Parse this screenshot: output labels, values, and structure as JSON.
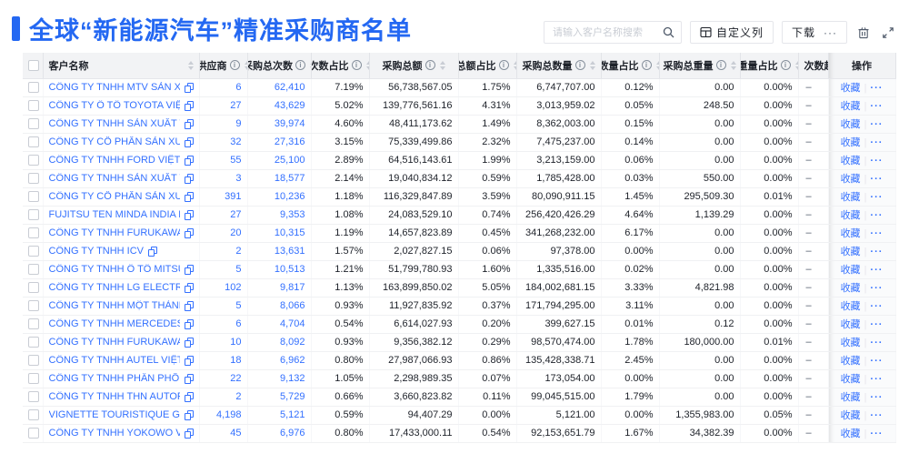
{
  "header": {
    "title": "全球“新能源汽车”精准采购商名单",
    "search_placeholder": "请输入客户名称搜索",
    "customize_columns_label": "自定义列",
    "download_label": "下载",
    "download_more_label": "···"
  },
  "table": {
    "columns": [
      {
        "key": "checkbox",
        "label": "",
        "type": "checkbox"
      },
      {
        "key": "name",
        "label": "客户名称",
        "info": false,
        "sort": true
      },
      {
        "key": "supplier",
        "label": "供应商",
        "info": true,
        "sort": true,
        "num": true,
        "link": true
      },
      {
        "key": "purchase_count",
        "label": "采购总次数",
        "info": true,
        "sort": true,
        "num": true,
        "link": true
      },
      {
        "key": "count_pct",
        "label": "次数占比",
        "info": true,
        "sort": true,
        "num": true
      },
      {
        "key": "amount",
        "label": "采购总额",
        "info": true,
        "sort": true,
        "num": true
      },
      {
        "key": "amount_pct",
        "label": "总额占比",
        "info": true,
        "sort": true,
        "num": true
      },
      {
        "key": "quantity",
        "label": "采购总数量",
        "info": true,
        "sort": true,
        "num": true
      },
      {
        "key": "quantity_pct",
        "label": "数量占比",
        "info": true,
        "sort": true,
        "num": true
      },
      {
        "key": "weight",
        "label": "采购总重量",
        "info": true,
        "sort": true,
        "num": true
      },
      {
        "key": "weight_pct",
        "label": "重量占比",
        "info": true,
        "sort": true,
        "num": true
      },
      {
        "key": "trend",
        "label": "次数趋势",
        "info": false,
        "sort": false
      },
      {
        "key": "action",
        "label": "操作",
        "type": "action"
      }
    ],
    "action_labels": {
      "favorite": "收藏",
      "separator": "|",
      "more": "···"
    },
    "rows": [
      {
        "name": "CÔNG TY TNHH MTV SẢN XUẤ...",
        "supplier": "6",
        "purchase_count": "62,410",
        "count_pct": "7.19%",
        "amount": "56,738,567.05",
        "amount_pct": "1.75%",
        "quantity": "6,747,707.00",
        "quantity_pct": "0.12%",
        "weight": "0.00",
        "weight_pct": "0.00%",
        "trend": "–"
      },
      {
        "name": "CÔNG TY Ô TÔ TOYOTA VIỆT ...",
        "supplier": "27",
        "purchase_count": "43,629",
        "count_pct": "5.02%",
        "amount": "139,776,561.16",
        "amount_pct": "4.31%",
        "quantity": "3,013,959.02",
        "quantity_pct": "0.05%",
        "weight": "248.50",
        "weight_pct": "0.00%",
        "trend": "–"
      },
      {
        "name": "CÔNG TY TNHH SẢN XUẤT VÀ ...",
        "supplier": "9",
        "purchase_count": "39,974",
        "count_pct": "4.60%",
        "amount": "48,411,173.62",
        "amount_pct": "1.49%",
        "quantity": "8,362,003.00",
        "quantity_pct": "0.15%",
        "weight": "0.00",
        "weight_pct": "0.00%",
        "trend": "–"
      },
      {
        "name": "CÔNG TY CỔ PHẦN SẢN XUẤT...",
        "supplier": "32",
        "purchase_count": "27,316",
        "count_pct": "3.15%",
        "amount": "75,339,499.86",
        "amount_pct": "2.32%",
        "quantity": "7,475,237.00",
        "quantity_pct": "0.14%",
        "weight": "0.00",
        "weight_pct": "0.00%",
        "trend": "–"
      },
      {
        "name": "CÔNG TY TNHH FORD VIỆT NAM",
        "supplier": "55",
        "purchase_count": "25,100",
        "count_pct": "2.89%",
        "amount": "64,516,143.61",
        "amount_pct": "1.99%",
        "quantity": "3,213,159.00",
        "quantity_pct": "0.06%",
        "weight": "0.00",
        "weight_pct": "0.00%",
        "trend": "–"
      },
      {
        "name": "CÔNG TY TNHH SẢN XUẤT VÀ ...",
        "supplier": "3",
        "purchase_count": "18,577",
        "count_pct": "2.14%",
        "amount": "19,040,834.12",
        "amount_pct": "0.59%",
        "quantity": "1,785,428.00",
        "quantity_pct": "0.03%",
        "weight": "550.00",
        "weight_pct": "0.00%",
        "trend": "–"
      },
      {
        "name": "CÔNG TY CỔ PHẦN SẢN XUẤT...",
        "supplier": "391",
        "purchase_count": "10,236",
        "count_pct": "1.18%",
        "amount": "116,329,847.89",
        "amount_pct": "3.59%",
        "quantity": "80,090,911.15",
        "quantity_pct": "1.45%",
        "weight": "295,509.30",
        "weight_pct": "0.01%",
        "trend": "–"
      },
      {
        "name": "FUJITSU TEN MINDA INDIA PVT...",
        "supplier": "27",
        "purchase_count": "9,353",
        "count_pct": "1.08%",
        "amount": "24,083,529.10",
        "amount_pct": "0.74%",
        "quantity": "256,420,426.29",
        "quantity_pct": "4.64%",
        "weight": "1,139.29",
        "weight_pct": "0.00%",
        "trend": "–"
      },
      {
        "name": "CÔNG TY TNHH FURUKAWA A...",
        "supplier": "20",
        "purchase_count": "10,315",
        "count_pct": "1.19%",
        "amount": "14,657,823.89",
        "amount_pct": "0.45%",
        "quantity": "341,268,232.00",
        "quantity_pct": "6.17%",
        "weight": "0.00",
        "weight_pct": "0.00%",
        "trend": "–"
      },
      {
        "name": "CÔNG TY TNHH ICV",
        "supplier": "2",
        "purchase_count": "13,631",
        "count_pct": "1.57%",
        "amount": "2,027,827.15",
        "amount_pct": "0.06%",
        "quantity": "97,378.00",
        "quantity_pct": "0.00%",
        "weight": "0.00",
        "weight_pct": "0.00%",
        "trend": "–"
      },
      {
        "name": "CÔNG TY TNHH Ô TÔ MITSUBI...",
        "supplier": "5",
        "purchase_count": "10,513",
        "count_pct": "1.21%",
        "amount": "51,799,780.93",
        "amount_pct": "1.60%",
        "quantity": "1,335,516.00",
        "quantity_pct": "0.02%",
        "weight": "0.00",
        "weight_pct": "0.00%",
        "trend": "–"
      },
      {
        "name": "CÔNG TY TNHH LG ELECTRON...",
        "supplier": "102",
        "purchase_count": "9,817",
        "count_pct": "1.13%",
        "amount": "163,899,850.02",
        "amount_pct": "5.05%",
        "quantity": "184,002,681.15",
        "quantity_pct": "3.33%",
        "weight": "4,821.98",
        "weight_pct": "0.00%",
        "trend": "–"
      },
      {
        "name": "CÔNG TY TNHH MỘT THÀNH V...",
        "supplier": "5",
        "purchase_count": "8,066",
        "count_pct": "0.93%",
        "amount": "11,927,835.92",
        "amount_pct": "0.37%",
        "quantity": "171,794,295.00",
        "quantity_pct": "3.11%",
        "weight": "0.00",
        "weight_pct": "0.00%",
        "trend": "–"
      },
      {
        "name": "CÔNG TY TNHH MERCEDES-B...",
        "supplier": "6",
        "purchase_count": "4,704",
        "count_pct": "0.54%",
        "amount": "6,614,027.93",
        "amount_pct": "0.20%",
        "quantity": "399,627.15",
        "quantity_pct": "0.01%",
        "weight": "0.12",
        "weight_pct": "0.00%",
        "trend": "–"
      },
      {
        "name": "CÔNG TY TNHH FURUKAWA A...",
        "supplier": "10",
        "purchase_count": "8,092",
        "count_pct": "0.93%",
        "amount": "9,356,382.12",
        "amount_pct": "0.29%",
        "quantity": "98,570,474.00",
        "quantity_pct": "1.78%",
        "weight": "180,000.00",
        "weight_pct": "0.01%",
        "trend": "–"
      },
      {
        "name": "CÔNG TY TNHH AUTEL VIỆT N...",
        "supplier": "18",
        "purchase_count": "6,962",
        "count_pct": "0.80%",
        "amount": "27,987,066.93",
        "amount_pct": "0.86%",
        "quantity": "135,428,338.71",
        "quantity_pct": "2.45%",
        "weight": "0.00",
        "weight_pct": "0.00%",
        "trend": "–"
      },
      {
        "name": "CÔNG TY TNHH PHÂN PHỐI T...",
        "supplier": "22",
        "purchase_count": "9,132",
        "count_pct": "1.05%",
        "amount": "2,298,989.35",
        "amount_pct": "0.07%",
        "quantity": "173,054.00",
        "quantity_pct": "0.00%",
        "weight": "0.00",
        "weight_pct": "0.00%",
        "trend": "–"
      },
      {
        "name": "CÔNG TY TNHH THN AUTOPAR...",
        "supplier": "2",
        "purchase_count": "5,729",
        "count_pct": "0.66%",
        "amount": "3,660,823.82",
        "amount_pct": "0.11%",
        "quantity": "99,045,515.00",
        "quantity_pct": "1.79%",
        "weight": "0.00",
        "weight_pct": "0.00%",
        "trend": "–"
      },
      {
        "name": "VIGNETTE TOURISTIQUE G UNI...",
        "supplier": "4,198",
        "purchase_count": "5,121",
        "count_pct": "0.59%",
        "amount": "94,407.29",
        "amount_pct": "0.00%",
        "quantity": "5,121.00",
        "quantity_pct": "0.00%",
        "weight": "1,355,983.00",
        "weight_pct": "0.05%",
        "trend": "–"
      },
      {
        "name": "CÔNG TY TNHH YOKOWO VIỆT...",
        "supplier": "45",
        "purchase_count": "6,976",
        "count_pct": "0.80%",
        "amount": "17,433,000.11",
        "amount_pct": "0.54%",
        "quantity": "92,153,651.79",
        "quantity_pct": "1.67%",
        "weight": "34,382.39",
        "weight_pct": "0.00%",
        "trend": "–"
      }
    ]
  },
  "colors": {
    "accent_blue": "#2468F2",
    "link_blue": "#3370FF",
    "header_bg": "#F2F3F5"
  }
}
